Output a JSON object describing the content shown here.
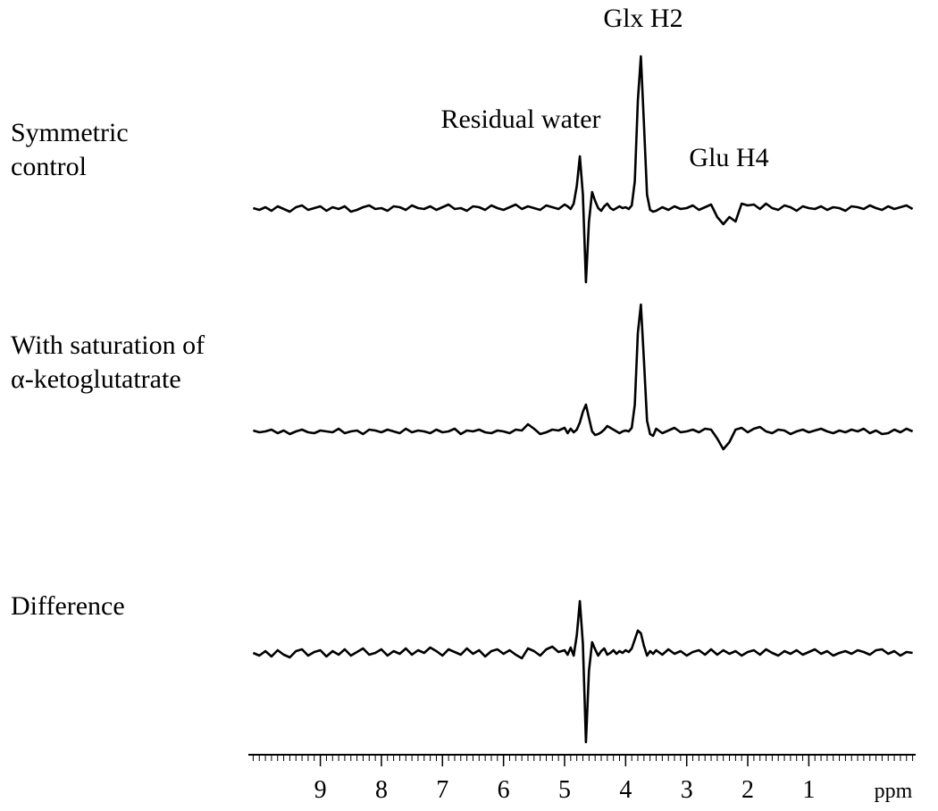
{
  "chart_data": {
    "type": "line",
    "x": [
      10.1,
      10.0,
      9.9,
      9.8,
      9.7,
      9.6,
      9.5,
      9.4,
      9.3,
      9.2,
      9.1,
      9.0,
      8.9,
      8.8,
      8.7,
      8.6,
      8.5,
      8.4,
      8.3,
      8.2,
      8.1,
      8.0,
      7.9,
      7.8,
      7.7,
      7.6,
      7.5,
      7.4,
      7.3,
      7.2,
      7.1,
      7.0,
      6.9,
      6.8,
      6.7,
      6.6,
      6.5,
      6.4,
      6.3,
      6.2,
      6.1,
      6.0,
      5.9,
      5.8,
      5.7,
      5.6,
      5.5,
      5.4,
      5.3,
      5.2,
      5.1,
      5.0,
      4.95,
      4.9,
      4.85,
      4.8,
      4.75,
      4.7,
      4.65,
      4.6,
      4.55,
      4.5,
      4.45,
      4.4,
      4.35,
      4.3,
      4.25,
      4.2,
      4.15,
      4.1,
      4.05,
      4.0,
      3.95,
      3.9,
      3.85,
      3.8,
      3.75,
      3.7,
      3.65,
      3.6,
      3.55,
      3.5,
      3.4,
      3.3,
      3.2,
      3.1,
      3.0,
      2.9,
      2.8,
      2.7,
      2.6,
      2.5,
      2.4,
      2.3,
      2.2,
      2.1,
      2.0,
      1.9,
      1.8,
      1.7,
      1.6,
      1.5,
      1.4,
      1.3,
      1.2,
      1.1,
      1.0,
      0.9,
      0.8,
      0.7,
      0.6,
      0.5,
      0.4,
      0.3,
      0.2,
      0.1,
      0.0,
      -0.1,
      -0.2,
      -0.3,
      -0.4,
      -0.5,
      -0.6,
      -0.7
    ],
    "series": [
      {
        "name": "Symmetric\ncontrol",
        "color": "#000000",
        "values": [
          0,
          -2,
          1,
          -3,
          2,
          -1,
          -4,
          1,
          3,
          -2,
          0,
          2,
          -3,
          1,
          -1,
          2,
          -4,
          -2,
          1,
          3,
          -1,
          0,
          -3,
          2,
          1,
          -2,
          3,
          0,
          -1,
          2,
          -2,
          1,
          4,
          -1,
          0,
          -3,
          2,
          1,
          -2,
          3,
          0,
          -2,
          1,
          4,
          -1,
          2,
          0,
          -2,
          3,
          1,
          -1,
          4,
          2,
          -1,
          5,
          25,
          58,
          15,
          -83,
          -15,
          18,
          8,
          0,
          -3,
          2,
          5,
          0,
          -2,
          0,
          2,
          0,
          1,
          -1,
          3,
          30,
          120,
          170,
          95,
          15,
          -2,
          -4,
          -3,
          1,
          -2,
          2,
          -1,
          0,
          3,
          -2,
          1,
          4,
          -10,
          -18,
          -10,
          -15,
          5,
          3,
          4,
          -1,
          5,
          0,
          -2,
          3,
          1,
          -3,
          2,
          0,
          -1,
          2,
          -2,
          1,
          0,
          -3,
          2,
          1,
          -1,
          3,
          0,
          -2,
          2,
          -1,
          1,
          3,
          -1
        ]
      },
      {
        "name": "With saturation of\nα-ketoglutatrate",
        "color": "#000000",
        "values": [
          1,
          -1,
          0,
          2,
          -2,
          1,
          -3,
          0,
          2,
          -1,
          -2,
          1,
          0,
          -1,
          3,
          -2,
          0,
          1,
          -3,
          2,
          1,
          -1,
          2,
          0,
          -2,
          3,
          -1,
          1,
          0,
          -2,
          2,
          -1,
          0,
          3,
          -3,
          1,
          0,
          2,
          -1,
          -2,
          1,
          0,
          -2,
          2,
          1,
          8,
          3,
          -3,
          -1,
          2,
          1,
          4,
          -2,
          3,
          -1,
          2,
          10,
          22,
          30,
          15,
          0,
          -4,
          -3,
          -1,
          2,
          6,
          4,
          2,
          0,
          -2,
          0,
          1,
          0,
          4,
          30,
          110,
          142,
          80,
          12,
          -3,
          -5,
          3,
          -2,
          1,
          4,
          -1,
          0,
          2,
          -1,
          3,
          2,
          -8,
          -20,
          -12,
          2,
          4,
          -1,
          3,
          5,
          0,
          -2,
          2,
          1,
          -3,
          0,
          2,
          -1,
          1,
          3,
          0,
          -2,
          1,
          -1,
          2,
          0,
          3,
          -2,
          1,
          -3,
          -2,
          2,
          -1,
          3,
          0
        ]
      },
      {
        "name": "Difference",
        "color": "#000000",
        "values": [
          0,
          -3,
          2,
          -4,
          3,
          -2,
          -5,
          2,
          4,
          -3,
          1,
          3,
          -4,
          2,
          -2,
          4,
          -3,
          1,
          5,
          -2,
          0,
          4,
          -3,
          2,
          -1,
          5,
          -2,
          3,
          0,
          6,
          2,
          -3,
          4,
          1,
          -2,
          5,
          -1,
          3,
          -4,
          2,
          4,
          -1,
          3,
          -2,
          -6,
          5,
          2,
          -3,
          4,
          7,
          1,
          3,
          -2,
          6,
          -3,
          20,
          58,
          10,
          -100,
          -20,
          12,
          4,
          -3,
          2,
          5,
          -2,
          0,
          3,
          -1,
          2,
          0,
          3,
          1,
          5,
          15,
          25,
          22,
          8,
          -3,
          2,
          -1,
          3,
          -2,
          4,
          -1,
          2,
          -3,
          1,
          3,
          -2,
          4,
          -2,
          3,
          -1,
          2,
          -3,
          1,
          3,
          -2,
          4,
          0,
          -3,
          2,
          -1,
          3,
          -2,
          1,
          4,
          -1,
          2,
          -3,
          0,
          2,
          -1,
          3,
          1,
          -2,
          3,
          4,
          -1,
          2,
          -3,
          1,
          0
        ]
      }
    ],
    "annotations": [
      "Glx H2",
      "Residual water",
      "Glu H4"
    ],
    "xlabel": "ppm",
    "xlim": [
      10.15,
      -0.75
    ],
    "xticks": [
      9,
      8,
      7,
      6,
      5,
      4,
      3,
      2,
      1
    ],
    "xminor_step": 0.1
  }
}
